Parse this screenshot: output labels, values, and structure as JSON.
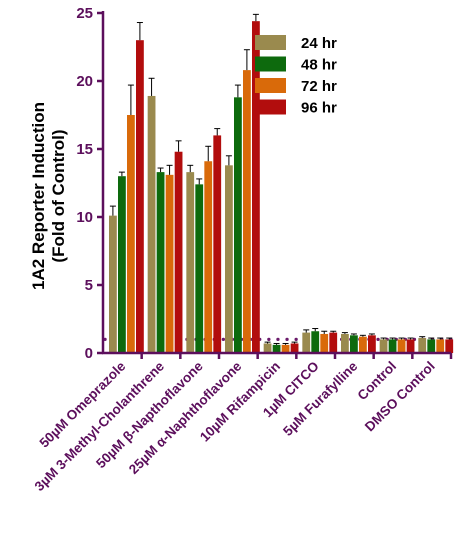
{
  "chart_data": {
    "type": "bar",
    "title": "",
    "xlabel": "",
    "ylabel_line1": "1A2 Reporter Induction",
    "ylabel_line2": "(Fold of Control)",
    "ylim": [
      0,
      25
    ],
    "yticks": [
      0,
      5,
      10,
      15,
      20,
      25
    ],
    "reference_line": 1.0,
    "legend_position": "top-right",
    "grid": false,
    "colors": {
      "axis": "#5c0f5c",
      "reference_line": "#6b1a6b",
      "error_bar": "#000000"
    },
    "categories": [
      "50µM Omeprazole",
      "3µM 3-Methyl-Cholanthrene",
      "50µM β-Napthoflavone",
      "25µM α-Naphthoflavone",
      "10µM Rifampicin",
      "1µM CITCO",
      "5µM Furafylline",
      "Control",
      "DMSO Control"
    ],
    "series": [
      {
        "name": "24 hr",
        "color": "#9a8a4e",
        "values": [
          10.1,
          18.9,
          13.3,
          13.8,
          0.7,
          1.5,
          1.4,
          1.0,
          1.1
        ],
        "errors": [
          0.7,
          1.3,
          0.5,
          0.7,
          0.1,
          0.2,
          0.1,
          0.1,
          0.1
        ]
      },
      {
        "name": "48 hr",
        "color": "#0d6a0d",
        "values": [
          13.0,
          13.3,
          12.4,
          18.8,
          0.6,
          1.6,
          1.3,
          1.0,
          1.0
        ],
        "errors": [
          0.3,
          0.3,
          0.4,
          0.9,
          0.1,
          0.2,
          0.1,
          0.1,
          0.1
        ]
      },
      {
        "name": "72 hr",
        "color": "#d96a0a",
        "values": [
          17.5,
          13.1,
          14.1,
          20.8,
          0.6,
          1.4,
          1.2,
          1.0,
          1.0
        ],
        "errors": [
          2.2,
          0.7,
          1.1,
          1.5,
          0.1,
          0.2,
          0.1,
          0.1,
          0.1
        ]
      },
      {
        "name": "96 hr",
        "color": "#b20d0d",
        "values": [
          23.0,
          14.8,
          16.0,
          24.4,
          0.7,
          1.5,
          1.3,
          1.0,
          1.0
        ],
        "errors": [
          1.3,
          0.8,
          0.5,
          0.5,
          0.1,
          0.1,
          0.1,
          0.1,
          0.1
        ]
      }
    ]
  }
}
